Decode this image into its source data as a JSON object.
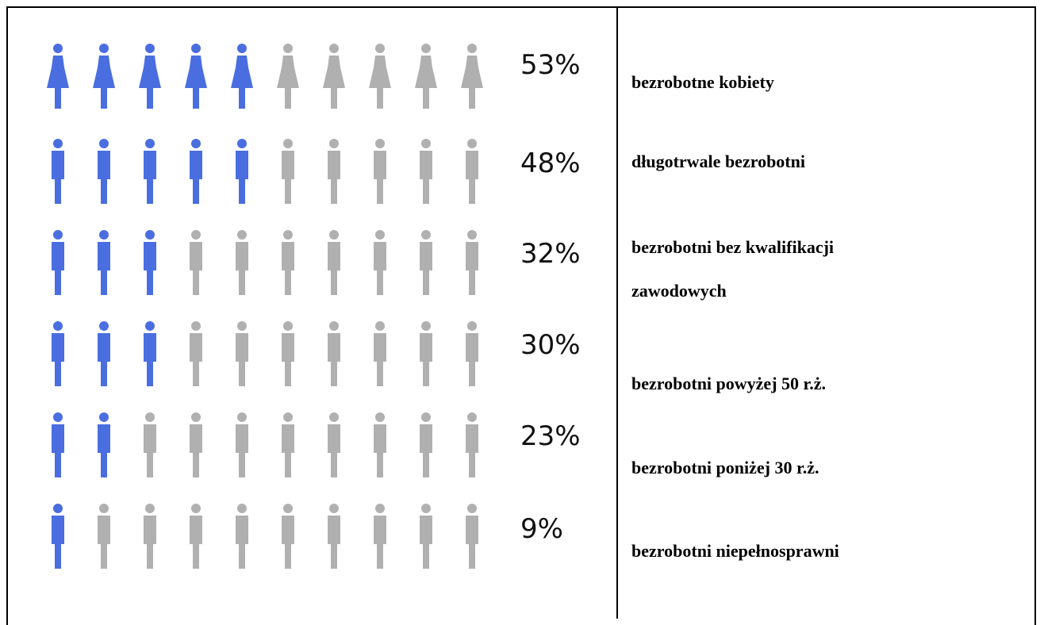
{
  "chart_data": {
    "type": "pictogram",
    "categories": [
      "bezrobotne kobiety",
      "długotrwale bezrobotni",
      "bezrobotni bez kwalifikacji zawodowych",
      "bezrobotni powyżej 50 r.ż.",
      "bezrobotni poniżej 30 r.ż.",
      "bezrobotni niepełnosprawni"
    ],
    "values": [
      53,
      48,
      32,
      30,
      23,
      9
    ],
    "value_labels": [
      "53%",
      "48%",
      "32%",
      "30%",
      "23%",
      "9%"
    ],
    "icon_shapes": [
      "female",
      "male",
      "male",
      "male",
      "male",
      "male"
    ],
    "xlim": [
      0,
      100
    ],
    "color": "#4a6ee0",
    "empty_color": "#b0b0b0"
  }
}
